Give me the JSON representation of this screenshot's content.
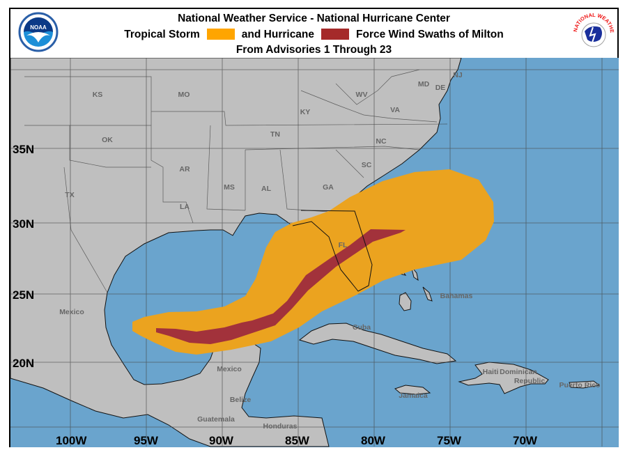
{
  "header": {
    "title": "National Weather Service - National Hurricane Center",
    "legend_prefix": "Tropical Storm",
    "legend_middle": "and Hurricane",
    "legend_suffix": "Force Wind Swaths of Milton",
    "subtitle": "From Advisories 1 Through 23",
    "left_logo": "NOAA",
    "right_logo": "NATIONAL WEATHER SERVICE"
  },
  "colors": {
    "tropical_storm": "#eba31f",
    "hurricane": "#a2323b",
    "ocean": "#6aa4cd",
    "land": "#bfbfbf"
  },
  "axes": {
    "longitude_labels": [
      "100W",
      "95W",
      "90W",
      "85W",
      "80W",
      "75W",
      "70W"
    ],
    "latitude_labels": [
      "35N",
      "30N",
      "25N",
      "20N"
    ]
  },
  "place_labels": [
    "KS",
    "MO",
    "KY",
    "WV",
    "VA",
    "OK",
    "AR",
    "TN",
    "NC",
    "SC",
    "GA",
    "TX",
    "MS",
    "AL",
    "LA",
    "FL",
    "MD",
    "DE",
    "NJ",
    "Mexico",
    "Bahamas",
    "Cuba",
    "Mexico",
    "Belize",
    "Guatemala",
    "Honduras",
    "Jamaica",
    "Haiti",
    "Dominican",
    "Republic",
    "Puerto Rico"
  ]
}
